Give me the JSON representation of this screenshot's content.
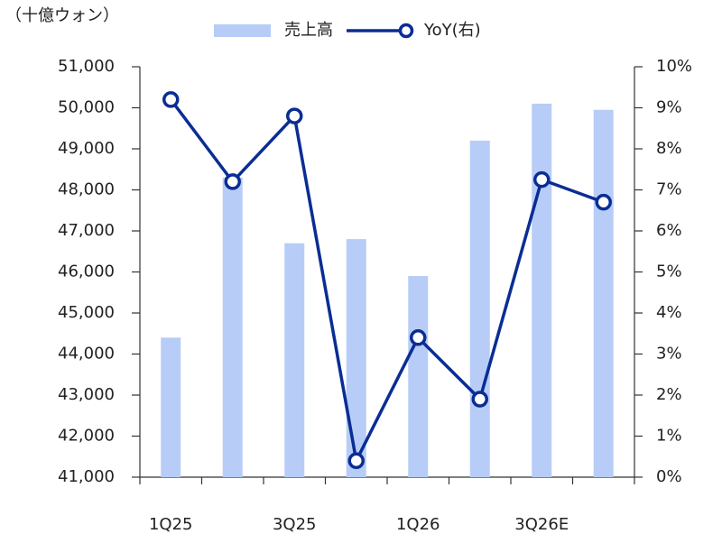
{
  "chart_data": {
    "type": "combo",
    "y_label": "（十億ウォン）",
    "categories": [
      "1Q25",
      null,
      "3Q25",
      null,
      "1Q26",
      null,
      "3Q26E",
      null
    ],
    "series": [
      {
        "name": "売上高",
        "type": "bar",
        "color": "#b7cdf7",
        "values": [
          44400,
          48300,
          46700,
          46800,
          45900,
          49200,
          50100,
          49950
        ]
      },
      {
        "name": "YoY(右)",
        "type": "line",
        "axis": "y2",
        "color": "#0a2d94",
        "values": [
          9.2,
          7.2,
          8.8,
          0.4,
          3.4,
          1.9,
          7.25,
          6.7
        ]
      }
    ],
    "ylim": [
      41000,
      51000
    ],
    "yticks": [
      {
        "value": 41000,
        "label": "41,000"
      },
      {
        "value": 42000,
        "label": "42,000"
      },
      {
        "value": 43000,
        "label": "43,000"
      },
      {
        "value": 44000,
        "label": "44,000"
      },
      {
        "value": 45000,
        "label": "45,000"
      },
      {
        "value": 46000,
        "label": "46,000"
      },
      {
        "value": 47000,
        "label": "47,000"
      },
      {
        "value": 48000,
        "label": "48,000"
      },
      {
        "value": 49000,
        "label": "49,000"
      },
      {
        "value": 50000,
        "label": "50,000"
      },
      {
        "value": 51000,
        "label": "51,000"
      }
    ],
    "y2lim": [
      0,
      10
    ],
    "y2ticks": [
      {
        "value": 0,
        "label": "0%"
      },
      {
        "value": 1,
        "label": "1%"
      },
      {
        "value": 2,
        "label": "2%"
      },
      {
        "value": 3,
        "label": "3%"
      },
      {
        "value": 4,
        "label": "4%"
      },
      {
        "value": 5,
        "label": "5%"
      },
      {
        "value": 6,
        "label": "6%"
      },
      {
        "value": 7,
        "label": "7%"
      },
      {
        "value": 8,
        "label": "8%"
      },
      {
        "value": 9,
        "label": "9%"
      },
      {
        "value": 10,
        "label": "10%"
      }
    ],
    "legend": "top",
    "grid": false
  }
}
